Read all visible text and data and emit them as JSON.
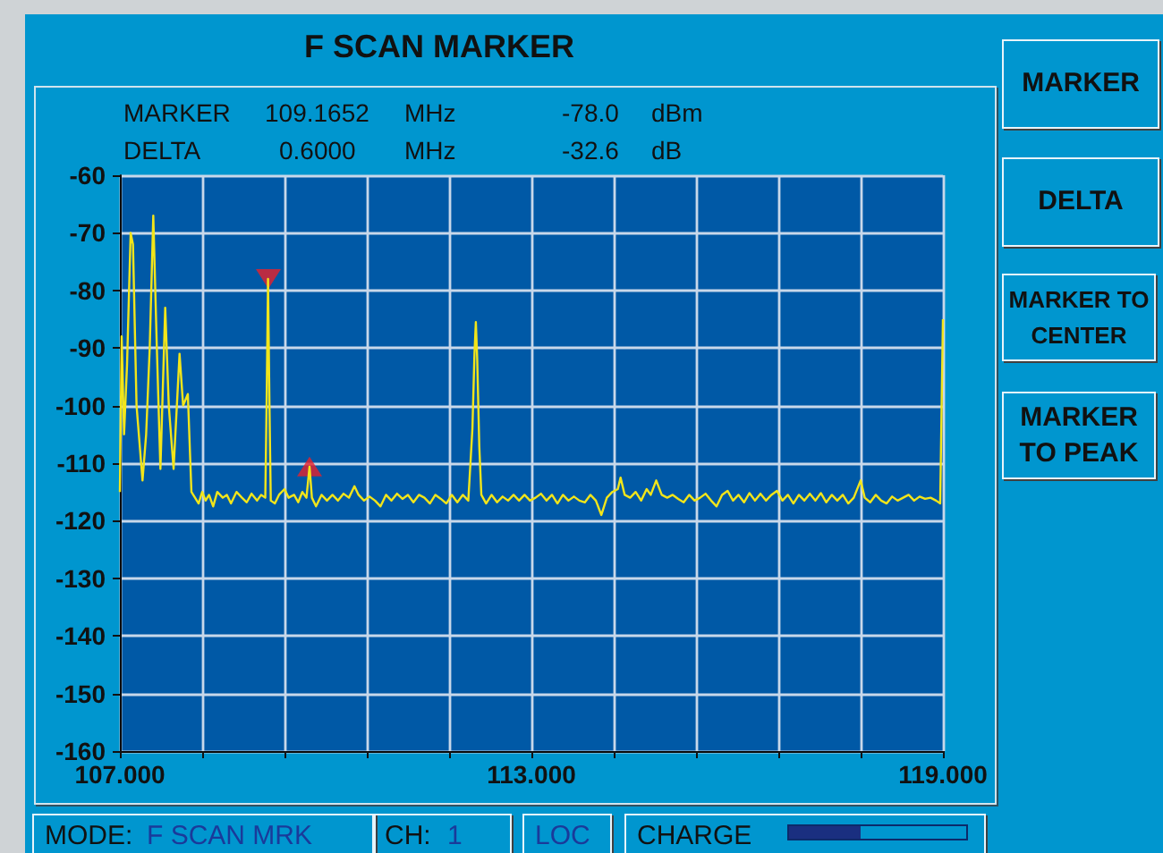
{
  "chart_data": {
    "type": "line",
    "title": "F SCAN MARKER",
    "xlim": [
      107,
      119
    ],
    "ylim": [
      -160,
      -60
    ],
    "xticks": [
      {
        "value": 107,
        "label": "107.000"
      },
      {
        "value": 108.2,
        "label": null
      },
      {
        "value": 109.4,
        "label": null
      },
      {
        "value": 110.6,
        "label": null
      },
      {
        "value": 111.8,
        "label": null
      },
      {
        "value": 113,
        "label": "113.000"
      },
      {
        "value": 114.2,
        "label": null
      },
      {
        "value": 115.4,
        "label": null
      },
      {
        "value": 116.6,
        "label": null
      },
      {
        "value": 117.8,
        "label": null
      },
      {
        "value": 119,
        "label": "119.000"
      }
    ],
    "yticks": [
      -160,
      -150,
      -140,
      -130,
      -120,
      -110,
      -100,
      -90,
      -80,
      -70,
      -60
    ],
    "grid": true,
    "series": [
      {
        "color": "#f2e51a",
        "marker": "none",
        "line_style": "solid",
        "x": [
          107.0,
          107.026,
          107.061,
          107.104,
          107.157,
          107.191,
          107.243,
          107.33,
          107.383,
          107.435,
          107.487,
          107.539,
          107.591,
          107.661,
          107.713,
          107.783,
          107.87,
          107.922,
          107.991,
          108.043,
          108.148,
          108.2,
          108.25,
          108.3,
          108.36,
          108.42,
          108.5,
          108.56,
          108.62,
          108.7,
          108.78,
          108.85,
          108.92,
          109.0,
          109.06,
          109.12,
          109.14,
          109.16,
          109.18,
          109.2,
          109.26,
          109.32,
          109.4,
          109.46,
          109.54,
          109.6,
          109.66,
          109.72,
          109.765,
          109.8,
          109.86,
          109.94,
          110.02,
          110.1,
          110.18,
          110.26,
          110.34,
          110.42,
          110.48,
          110.56,
          110.64,
          110.72,
          110.8,
          110.88,
          110.96,
          111.04,
          111.12,
          111.2,
          111.28,
          111.36,
          111.44,
          111.52,
          111.6,
          111.68,
          111.76,
          111.84,
          111.92,
          112.0,
          112.08,
          112.14,
          112.17,
          112.19,
          112.21,
          112.24,
          112.27,
          112.34,
          112.42,
          112.5,
          112.58,
          112.66,
          112.74,
          112.82,
          112.9,
          112.98,
          113.06,
          113.14,
          113.22,
          113.3,
          113.38,
          113.46,
          113.54,
          113.62,
          113.7,
          113.78,
          113.86,
          113.94,
          114.02,
          114.1,
          114.18,
          114.26,
          114.3,
          114.36,
          114.44,
          114.52,
          114.6,
          114.68,
          114.74,
          114.82,
          114.9,
          114.98,
          115.06,
          115.14,
          115.22,
          115.3,
          115.38,
          115.46,
          115.54,
          115.62,
          115.7,
          115.78,
          115.86,
          115.94,
          116.02,
          116.1,
          116.18,
          116.26,
          116.34,
          116.42,
          116.5,
          116.58,
          116.66,
          116.74,
          116.82,
          116.9,
          116.98,
          117.06,
          117.14,
          117.22,
          117.3,
          117.38,
          117.46,
          117.54,
          117.62,
          117.7,
          117.8,
          117.86,
          117.94,
          118.02,
          118.1,
          118.18,
          118.26,
          118.34,
          118.42,
          118.5,
          118.58,
          118.66,
          118.74,
          118.82,
          118.9,
          118.96,
          119.0
        ],
        "values": [
          -115,
          -88,
          -105,
          -93,
          -70,
          -72,
          -100,
          -113,
          -105,
          -90,
          -67,
          -90,
          -111,
          -83,
          -100,
          -111,
          -91,
          -100,
          -98,
          -115,
          -117,
          -115,
          -116.5,
          -115.5,
          -117.5,
          -115,
          -116,
          -115.5,
          -117,
          -115,
          -116,
          -116.8,
          -115.3,
          -116.5,
          -115.5,
          -116,
          -99,
          -78,
          -99,
          -116.5,
          -117,
          -115.5,
          -114.5,
          -116,
          -115.5,
          -116.8,
          -115,
          -116,
          -110.6,
          -116,
          -117.5,
          -115.5,
          -116.5,
          -115.5,
          -116.5,
          -115.3,
          -116,
          -114,
          -115.5,
          -116.5,
          -115.8,
          -116.5,
          -117.5,
          -115.5,
          -116.5,
          -115.3,
          -116.2,
          -115.5,
          -116.8,
          -115.5,
          -116,
          -117,
          -115.5,
          -116.2,
          -117,
          -115.5,
          -116.8,
          -115.5,
          -116.5,
          -104,
          -91,
          -85.5,
          -92,
          -107,
          -115.5,
          -117,
          -115.5,
          -116.8,
          -115.8,
          -116.5,
          -115.5,
          -116.5,
          -115.5,
          -116.5,
          -116,
          -115.3,
          -116.5,
          -115.5,
          -117,
          -115.5,
          -116.5,
          -115.8,
          -116.5,
          -116.8,
          -115.5,
          -116.5,
          -119,
          -116,
          -115,
          -114.5,
          -112.5,
          -115.5,
          -116,
          -115,
          -116.5,
          -114.5,
          -115.5,
          -113,
          -115.5,
          -116,
          -115.5,
          -116.2,
          -116.8,
          -115.5,
          -116.5,
          -116,
          -115.3,
          -116.5,
          -117.5,
          -115.5,
          -114.8,
          -116.5,
          -115.5,
          -116.8,
          -115.2,
          -116.5,
          -115.3,
          -116.5,
          -115.5,
          -114.8,
          -116.5,
          -115.5,
          -117,
          -115.5,
          -116.5,
          -115.3,
          -116.5,
          -115.2,
          -116.8,
          -115.5,
          -116.5,
          -115.5,
          -117,
          -116,
          -113,
          -116,
          -116.8,
          -115.5,
          -116.5,
          -117,
          -115.8,
          -116.5,
          -116,
          -115.5,
          -116.5,
          -115.8,
          -116.2,
          -116,
          -116.5,
          -117,
          -85
        ]
      },
      {
        "type": "scatter",
        "color": "#e8202a",
        "marker": "triangle",
        "x": [
          109.1652
        ],
        "values": [
          -78
        ]
      },
      {
        "type": "scatter",
        "color": "#e8202a",
        "marker": "triangle",
        "x": [
          109.7652
        ],
        "values": [
          -110.6
        ]
      }
    ],
    "annotations": [
      "MARKER",
      "109.1652",
      "MHz",
      "-78.0",
      "dBm",
      "DELTA",
      "0.6000",
      "MHz",
      "-32.6",
      "dB",
      "MARKER",
      "DELTA",
      "MARKER TO CENTER",
      "MARKER TO PEAK",
      "MODE:",
      "F SCAN MRK",
      "CH:",
      "1",
      "LOC",
      "CHARGE"
    ]
  }
}
